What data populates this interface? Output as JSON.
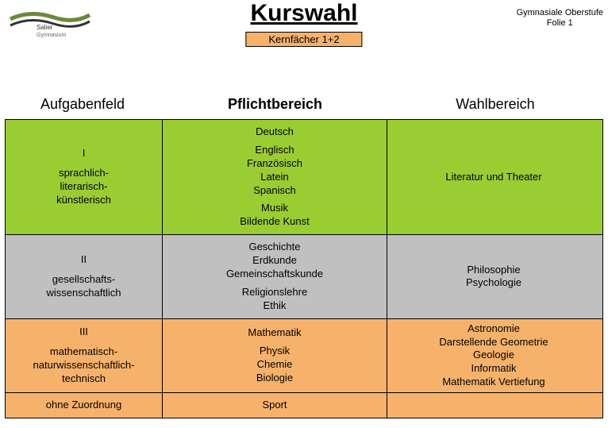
{
  "meta": {
    "logo_name": "Salier Gymnasium",
    "title": "Kurswahl",
    "subtitle": "Kernfächer 1+2",
    "top_right_line1": "Gymnasiale Oberstufe",
    "top_right_line2": "Folie 1"
  },
  "headers": {
    "col1": "Aufgabenfeld",
    "col2": "Pflichtbereich",
    "col3": "Wahlbereich"
  },
  "colors": {
    "subtitle_bg": "#f6b26b",
    "row1_bg": "#9acd32",
    "row2_bg": "#c0c0c0",
    "row3_bg": "#f6b26b",
    "row4_bg": "#f6b26b"
  },
  "rows": [
    {
      "bg_key": "row1_bg",
      "c1_num": "I",
      "c1_desc": "sprachlich-\nliterarisch-\nkünstlerisch",
      "c2_blocks": [
        "Deutsch",
        "Englisch\nFranzösisch\nLatein\nSpanisch",
        "Musik\nBildende Kunst"
      ],
      "c3": "Literatur und Theater"
    },
    {
      "bg_key": "row2_bg",
      "c1_num": "II",
      "c1_desc": "gesellschafts-\nwissenschaftlich",
      "c2_blocks": [
        "Geschichte\nErdkunde\nGemeinschaftskunde",
        "Religionslehre\nEthik"
      ],
      "c3": "Philosophie\nPsychologie"
    },
    {
      "bg_key": "row3_bg",
      "c1_num": "III",
      "c1_desc": "mathematisch-\nnaturwissenschaftlich-\ntechnisch",
      "c2_blocks": [
        "Mathematik",
        "Physik\nChemie\nBiologie"
      ],
      "c3": "Astronomie\nDarstellende Geometrie\nGeologie\nInformatik\nMathematik Vertiefung"
    },
    {
      "bg_key": "row4_bg",
      "c1_num": "",
      "c1_desc": "ohne Zuordnung",
      "c2_blocks": [
        "Sport"
      ],
      "c3": ""
    }
  ]
}
